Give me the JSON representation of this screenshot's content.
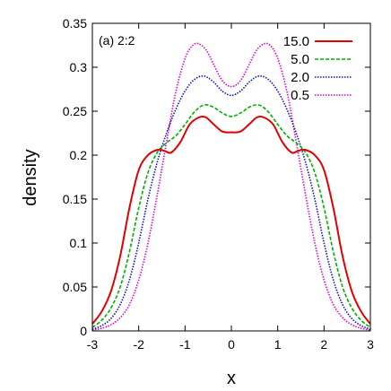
{
  "chart_data": {
    "type": "line",
    "panel_label": "(a) 2:2",
    "xlabel": "x",
    "ylabel": "density",
    "xlim": [
      -3,
      3
    ],
    "ylim": [
      0,
      0.35
    ],
    "x_ticks": [
      -3,
      -2,
      -1,
      0,
      1,
      2,
      3
    ],
    "y_ticks": [
      0,
      0.05,
      0.1,
      0.15,
      0.2,
      0.25,
      0.3,
      0.35
    ],
    "x_tick_labels": [
      "-3",
      "-2",
      "-1",
      "0",
      "1",
      "2",
      "3"
    ],
    "y_tick_labels": [
      "0",
      "0.05",
      "0.1",
      "0.15",
      "0.2",
      "0.25",
      "0.3",
      "0.35"
    ],
    "legend_position": "top-right",
    "grid": false,
    "series": [
      {
        "name": "15.0",
        "color": "#e00000",
        "style": "solid",
        "x": [
          -3,
          -2.8,
          -2.6,
          -2.4,
          -2.2,
          -2.0,
          -1.8,
          -1.6,
          -1.45,
          -1.3,
          -1.1,
          -0.9,
          -0.7,
          -0.55,
          -0.4,
          -0.2,
          0,
          0.2,
          0.4,
          0.55,
          0.7,
          0.9,
          1.1,
          1.3,
          1.45,
          1.6,
          1.8,
          2.0,
          2.2,
          2.4,
          2.6,
          2.8,
          3.0
        ],
        "y": [
          0.008,
          0.022,
          0.045,
          0.085,
          0.14,
          0.183,
          0.2,
          0.206,
          0.205,
          0.203,
          0.215,
          0.235,
          0.243,
          0.243,
          0.236,
          0.227,
          0.226,
          0.227,
          0.236,
          0.243,
          0.243,
          0.235,
          0.215,
          0.203,
          0.205,
          0.206,
          0.2,
          0.183,
          0.14,
          0.085,
          0.045,
          0.022,
          0.008
        ]
      },
      {
        "name": "5.0",
        "color": "#00b000",
        "style": "dashed",
        "x": [
          -3,
          -2.8,
          -2.6,
          -2.4,
          -2.2,
          -2.0,
          -1.8,
          -1.6,
          -1.4,
          -1.2,
          -1.0,
          -0.8,
          -0.6,
          -0.4,
          -0.2,
          0,
          0.2,
          0.4,
          0.6,
          0.8,
          1.0,
          1.2,
          1.4,
          1.6,
          1.8,
          2.0,
          2.2,
          2.4,
          2.6,
          2.8,
          3.0
        ],
        "y": [
          0.004,
          0.012,
          0.026,
          0.05,
          0.09,
          0.14,
          0.18,
          0.203,
          0.214,
          0.222,
          0.235,
          0.249,
          0.257,
          0.255,
          0.248,
          0.244,
          0.248,
          0.255,
          0.257,
          0.249,
          0.235,
          0.222,
          0.214,
          0.203,
          0.18,
          0.14,
          0.09,
          0.05,
          0.026,
          0.012,
          0.004
        ]
      },
      {
        "name": "2.0",
        "color": "#1010c0",
        "style": "dotted",
        "x": [
          -3,
          -2.8,
          -2.6,
          -2.4,
          -2.2,
          -2.0,
          -1.8,
          -1.6,
          -1.4,
          -1.2,
          -1.0,
          -0.8,
          -0.6,
          -0.4,
          -0.2,
          0,
          0.2,
          0.4,
          0.6,
          0.8,
          1.0,
          1.2,
          1.4,
          1.6,
          1.8,
          2.0,
          2.2,
          2.4,
          2.6,
          2.8,
          3.0
        ],
        "y": [
          0.002,
          0.006,
          0.014,
          0.03,
          0.058,
          0.1,
          0.15,
          0.192,
          0.225,
          0.252,
          0.273,
          0.286,
          0.29,
          0.284,
          0.273,
          0.268,
          0.273,
          0.284,
          0.29,
          0.286,
          0.273,
          0.252,
          0.225,
          0.192,
          0.15,
          0.1,
          0.058,
          0.03,
          0.014,
          0.006,
          0.002
        ]
      },
      {
        "name": "0.5",
        "color": "#e000e0",
        "style": "dotted",
        "x": [
          -3,
          -2.8,
          -2.6,
          -2.4,
          -2.2,
          -2.0,
          -1.8,
          -1.6,
          -1.4,
          -1.2,
          -1.0,
          -0.85,
          -0.72,
          -0.55,
          -0.4,
          -0.2,
          0,
          0.2,
          0.4,
          0.55,
          0.72,
          0.85,
          1.0,
          1.2,
          1.4,
          1.6,
          1.8,
          2.0,
          2.2,
          2.4,
          2.6,
          2.8,
          3.0
        ],
        "y": [
          0.001,
          0.003,
          0.007,
          0.015,
          0.03,
          0.058,
          0.1,
          0.155,
          0.215,
          0.272,
          0.31,
          0.324,
          0.327,
          0.32,
          0.305,
          0.285,
          0.278,
          0.285,
          0.305,
          0.32,
          0.327,
          0.324,
          0.31,
          0.272,
          0.215,
          0.155,
          0.1,
          0.058,
          0.03,
          0.015,
          0.007,
          0.003,
          0.001
        ]
      }
    ]
  }
}
